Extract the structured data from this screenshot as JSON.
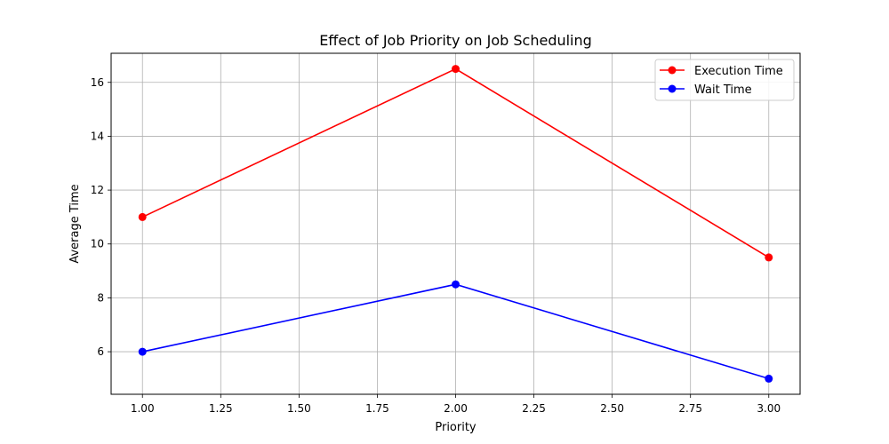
{
  "chart_data": {
    "type": "line",
    "title": "Effect of Job Priority on Job Scheduling",
    "xlabel": "Priority",
    "ylabel": "Average Time",
    "x": [
      1,
      2,
      3
    ],
    "series": [
      {
        "name": "Execution Time",
        "values": [
          11,
          16.5,
          9.5
        ],
        "color": "#ff0000"
      },
      {
        "name": "Wait Time",
        "values": [
          6,
          8.5,
          5
        ],
        "color": "#0000ff"
      }
    ],
    "xlim": [
      0.9,
      3.1
    ],
    "ylim": [
      4.42,
      17.08
    ],
    "x_ticks": [
      1.0,
      1.25,
      1.5,
      1.75,
      2.0,
      2.25,
      2.5,
      2.75,
      3.0
    ],
    "x_tick_labels": [
      "1.00",
      "1.25",
      "1.50",
      "1.75",
      "2.00",
      "2.25",
      "2.50",
      "2.75",
      "3.00"
    ],
    "y_ticks": [
      6,
      8,
      10,
      12,
      14,
      16
    ],
    "y_tick_labels": [
      "6",
      "8",
      "10",
      "12",
      "14",
      "16"
    ],
    "grid": true,
    "legend_position": "top-right",
    "marker": "circle"
  }
}
